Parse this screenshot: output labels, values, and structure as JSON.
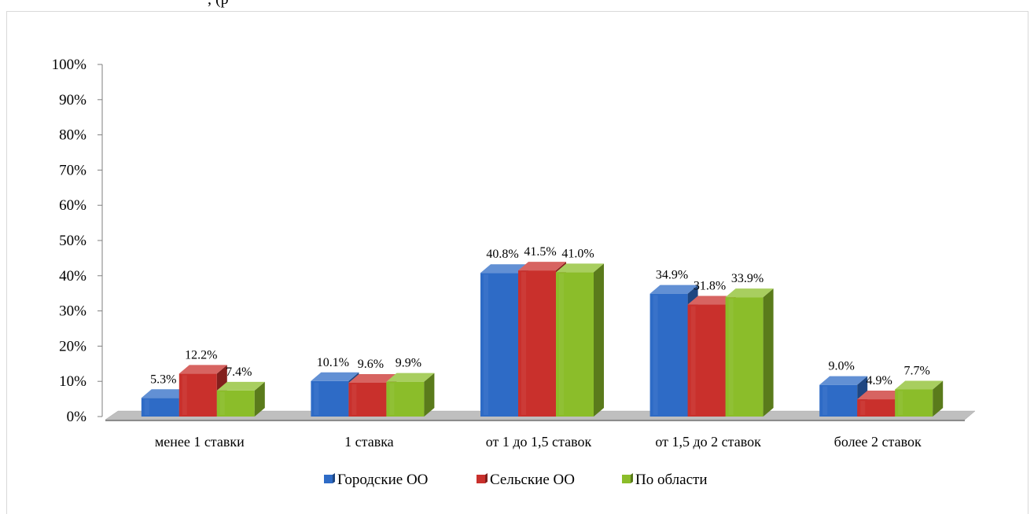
{
  "top_fragment": ", (р",
  "chart_data": {
    "type": "bar",
    "title": "",
    "xlabel": "",
    "ylabel": "",
    "ylim": [
      0,
      100
    ],
    "yticks": [
      "0%",
      "10%",
      "20%",
      "30%",
      "40%",
      "50%",
      "60%",
      "70%",
      "80%",
      "90%",
      "100%"
    ],
    "categories": [
      "менее 1 ставки",
      "1 ставка",
      "от 1 до 1,5 ставок",
      "от 1,5 до 2 ставок",
      "более 2 ставок"
    ],
    "series": [
      {
        "name": "Городские ОО",
        "color": "#2e6bc6",
        "values": [
          5.3,
          10.1,
          40.8,
          34.9,
          9.0
        ],
        "labels": [
          "5.3%",
          "10.1%",
          "40.8%",
          "34.9%",
          "9.0%"
        ]
      },
      {
        "name": "Сельские ОО",
        "color": "#c9302c",
        "values": [
          12.2,
          9.6,
          41.5,
          31.8,
          4.9
        ],
        "labels": [
          "12.2%",
          "9.6%",
          "41.5%",
          "31.8%",
          "4.9%"
        ]
      },
      {
        "name": "По области",
        "color": "#8bbd2a",
        "values": [
          7.4,
          9.9,
          41.0,
          33.9,
          7.7
        ],
        "labels": [
          "7.4%",
          "9.9%",
          "41.0%",
          "33.9%",
          "7.7%"
        ]
      }
    ],
    "grid": false,
    "legend": "bottom-center"
  }
}
